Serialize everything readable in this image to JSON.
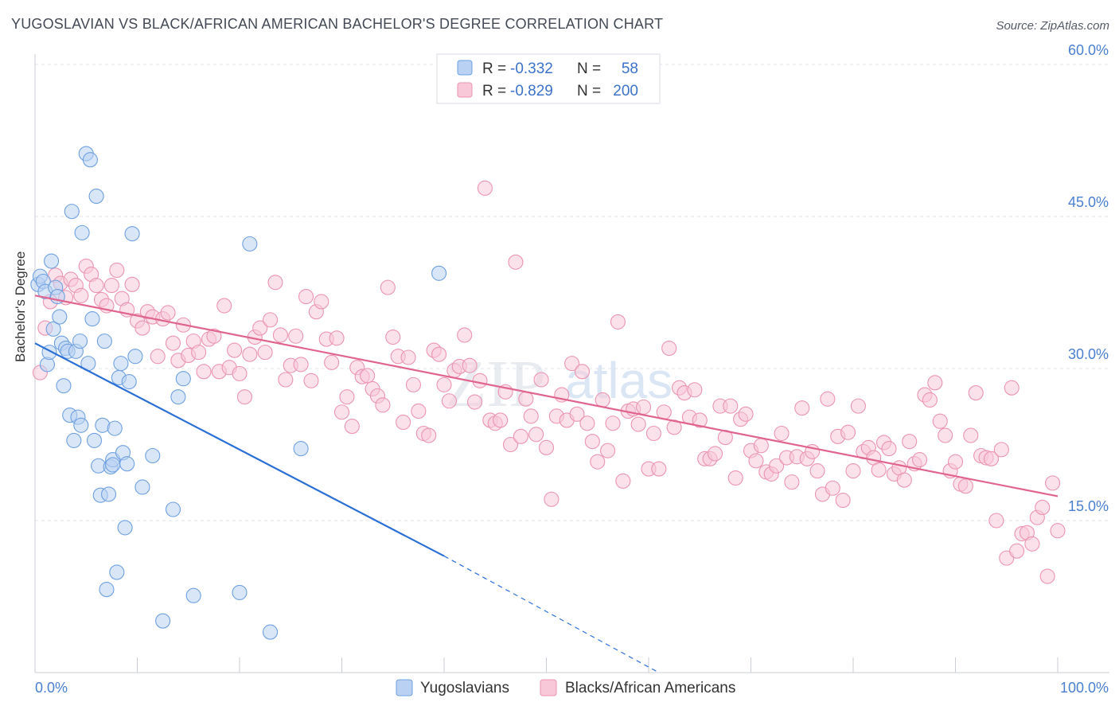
{
  "header": {
    "title": "YUGOSLAVIAN VS BLACK/AFRICAN AMERICAN BACHELOR'S DEGREE CORRELATION CHART",
    "source": "Source: ZipAtlas.com"
  },
  "watermark": {
    "part1": "ZIP",
    "part2": "atlas"
  },
  "colors": {
    "blue": "#6ea0e0",
    "blue_fill": "#b9d1f2",
    "blue_line": "#2a6fd6",
    "pink": "#eb94b2",
    "pink_fill": "#f8c8d8",
    "pink_line": "#e0648e",
    "axis_text": "#4a7fd0",
    "grid": "#dfe3ea"
  },
  "legend_top": {
    "rows": [
      {
        "r_label": "R =",
        "r_value": "-0.332",
        "n_label": "N =",
        "n_value": "58"
      },
      {
        "r_label": "R =",
        "r_value": "-0.829",
        "n_label": "N =",
        "n_value": "200"
      }
    ]
  },
  "chart_data": {
    "type": "scatter",
    "xlabel": "",
    "ylabel": "Bachelor's Degree",
    "xlim": [
      0,
      100
    ],
    "ylim": [
      0,
      60
    ],
    "x_tick_labels": [
      "0.0%",
      "100.0%"
    ],
    "y_ticks": [
      15,
      30,
      45,
      60
    ],
    "y_tick_labels": [
      "15.0%",
      "30.0%",
      "45.0%",
      "60.0%"
    ],
    "grid": true,
    "legend": [
      "Yugoslavians",
      "Blacks/African Americans"
    ],
    "series": [
      {
        "name": "Yugoslavians",
        "r": -0.332,
        "n": 58,
        "trend": {
          "x0": 0,
          "y0": 32.5,
          "x1": 40,
          "y1": 11.5,
          "x_dash_end": 61,
          "y_dash_end": 0
        },
        "points": [
          [
            0.3,
            38.3
          ],
          [
            0.5,
            39.1
          ],
          [
            0.8,
            38.6
          ],
          [
            1.0,
            37.6
          ],
          [
            1.2,
            30.4
          ],
          [
            1.4,
            31.6
          ],
          [
            1.6,
            40.6
          ],
          [
            1.8,
            33.9
          ],
          [
            2.0,
            38.0
          ],
          [
            2.2,
            37.1
          ],
          [
            2.4,
            35.1
          ],
          [
            2.6,
            32.5
          ],
          [
            2.8,
            28.3
          ],
          [
            3.0,
            32.0
          ],
          [
            3.2,
            31.7
          ],
          [
            3.4,
            25.4
          ],
          [
            3.6,
            45.5
          ],
          [
            3.8,
            22.9
          ],
          [
            4.0,
            31.7
          ],
          [
            4.2,
            25.2
          ],
          [
            4.4,
            32.7
          ],
          [
            4.6,
            43.4
          ],
          [
            4.5,
            24.4
          ],
          [
            5.0,
            51.2
          ],
          [
            5.2,
            30.5
          ],
          [
            5.4,
            50.6
          ],
          [
            5.6,
            34.9
          ],
          [
            5.8,
            22.9
          ],
          [
            6.0,
            47.0
          ],
          [
            6.2,
            20.4
          ],
          [
            6.4,
            17.5
          ],
          [
            6.6,
            24.4
          ],
          [
            6.8,
            32.7
          ],
          [
            7.0,
            8.2
          ],
          [
            7.2,
            17.6
          ],
          [
            7.4,
            20.3
          ],
          [
            7.6,
            21.0
          ],
          [
            7.8,
            24.1
          ],
          [
            7.6,
            20.5
          ],
          [
            8.0,
            9.9
          ],
          [
            8.2,
            29.1
          ],
          [
            8.4,
            30.5
          ],
          [
            8.6,
            21.7
          ],
          [
            8.8,
            14.3
          ],
          [
            9.0,
            20.6
          ],
          [
            9.2,
            28.7
          ],
          [
            9.5,
            43.3
          ],
          [
            9.8,
            31.2
          ],
          [
            10.5,
            18.3
          ],
          [
            11.5,
            21.4
          ],
          [
            12.5,
            5.1
          ],
          [
            13.5,
            16.1
          ],
          [
            14.0,
            27.2
          ],
          [
            14.5,
            29.0
          ],
          [
            15.5,
            7.6
          ],
          [
            20.0,
            7.9
          ],
          [
            21.0,
            42.3
          ],
          [
            23.0,
            4.0
          ],
          [
            26.0,
            22.1
          ],
          [
            39.5,
            39.4
          ]
        ]
      },
      {
        "name": "Blacks/African Americans",
        "r": -0.829,
        "n": 200,
        "trend": {
          "x0": 0,
          "y0": 37.2,
          "x1": 100,
          "y1": 17.4
        },
        "points": [
          [
            0.5,
            29.6
          ],
          [
            1.0,
            34.0
          ],
          [
            1.5,
            36.6
          ],
          [
            2.0,
            39.2
          ],
          [
            2.5,
            38.4
          ],
          [
            3.0,
            37.0
          ],
          [
            3.5,
            38.8
          ],
          [
            4.0,
            38.2
          ],
          [
            4.5,
            37.2
          ],
          [
            5.0,
            40.1
          ],
          [
            5.5,
            39.3
          ],
          [
            6.0,
            38.2
          ],
          [
            6.5,
            36.8
          ],
          [
            7.0,
            36.2
          ],
          [
            7.5,
            38.2
          ],
          [
            8.0,
            39.7
          ],
          [
            8.5,
            36.9
          ],
          [
            9.0,
            35.8
          ],
          [
            9.5,
            38.3
          ],
          [
            10.0,
            34.7
          ],
          [
            10.5,
            34.0
          ],
          [
            11.0,
            35.6
          ],
          [
            11.5,
            35.1
          ],
          [
            12.0,
            31.2
          ],
          [
            12.5,
            34.9
          ],
          [
            13.0,
            35.5
          ],
          [
            13.5,
            32.5
          ],
          [
            14.0,
            30.8
          ],
          [
            14.5,
            34.3
          ],
          [
            15.0,
            31.3
          ],
          [
            15.5,
            32.7
          ],
          [
            16.0,
            31.6
          ],
          [
            16.5,
            29.7
          ],
          [
            17.0,
            32.9
          ],
          [
            17.5,
            33.2
          ],
          [
            18.0,
            29.7
          ],
          [
            18.5,
            36.2
          ],
          [
            19.0,
            30.1
          ],
          [
            19.5,
            31.8
          ],
          [
            20.0,
            29.5
          ],
          [
            20.5,
            27.2
          ],
          [
            21.0,
            31.4
          ],
          [
            21.5,
            33.1
          ],
          [
            22.0,
            34.0
          ],
          [
            22.5,
            31.6
          ],
          [
            23.0,
            34.8
          ],
          [
            23.5,
            38.5
          ],
          [
            24.0,
            33.3
          ],
          [
            24.5,
            28.9
          ],
          [
            25.0,
            30.3
          ],
          [
            25.5,
            33.2
          ],
          [
            26.0,
            30.4
          ],
          [
            26.5,
            37.1
          ],
          [
            27.0,
            28.8
          ],
          [
            27.5,
            35.6
          ],
          [
            28.0,
            36.6
          ],
          [
            28.5,
            32.9
          ],
          [
            29.0,
            30.6
          ],
          [
            29.5,
            33.0
          ],
          [
            30.0,
            25.7
          ],
          [
            30.5,
            27.2
          ],
          [
            31.0,
            24.3
          ],
          [
            31.5,
            30.1
          ],
          [
            32.0,
            29.2
          ],
          [
            32.5,
            29.3
          ],
          [
            33.0,
            28.0
          ],
          [
            33.5,
            27.3
          ],
          [
            34.0,
            26.4
          ],
          [
            34.5,
            38.0
          ],
          [
            35.0,
            33.1
          ],
          [
            35.5,
            31.2
          ],
          [
            36.0,
            24.7
          ],
          [
            36.5,
            31.1
          ],
          [
            37.0,
            28.4
          ],
          [
            37.5,
            25.8
          ],
          [
            38.0,
            23.6
          ],
          [
            38.5,
            23.4
          ],
          [
            39.0,
            31.8
          ],
          [
            39.5,
            31.4
          ],
          [
            40.0,
            28.4
          ],
          [
            40.5,
            26.8
          ],
          [
            41.0,
            29.8
          ],
          [
            41.5,
            30.2
          ],
          [
            42.0,
            33.3
          ],
          [
            42.5,
            30.3
          ],
          [
            43.0,
            26.7
          ],
          [
            43.5,
            28.8
          ],
          [
            44.0,
            47.8
          ],
          [
            44.5,
            24.9
          ],
          [
            45.0,
            24.6
          ],
          [
            45.5,
            24.9
          ],
          [
            46.0,
            27.7
          ],
          [
            46.5,
            22.5
          ],
          [
            47.0,
            40.5
          ],
          [
            47.5,
            23.3
          ],
          [
            48.0,
            27.0
          ],
          [
            48.5,
            25.3
          ],
          [
            49.0,
            23.5
          ],
          [
            49.5,
            28.9
          ],
          [
            50.0,
            22.2
          ],
          [
            50.5,
            17.1
          ],
          [
            51.0,
            25.3
          ],
          [
            51.5,
            27.4
          ],
          [
            52.0,
            24.9
          ],
          [
            52.5,
            30.5
          ],
          [
            53.0,
            25.5
          ],
          [
            53.5,
            29.7
          ],
          [
            54.0,
            24.6
          ],
          [
            54.5,
            22.8
          ],
          [
            55.0,
            20.8
          ],
          [
            55.5,
            26.9
          ],
          [
            56.0,
            21.9
          ],
          [
            56.5,
            24.6
          ],
          [
            57.0,
            34.6
          ],
          [
            57.5,
            18.9
          ],
          [
            58.0,
            25.8
          ],
          [
            58.5,
            26.0
          ],
          [
            59.0,
            24.5
          ],
          [
            59.5,
            26.2
          ],
          [
            60.0,
            20.1
          ],
          [
            60.5,
            23.6
          ],
          [
            61.0,
            20.1
          ],
          [
            61.5,
            25.7
          ],
          [
            62.0,
            32.0
          ],
          [
            62.5,
            24.2
          ],
          [
            63.0,
            28.1
          ],
          [
            63.5,
            27.6
          ],
          [
            64.0,
            25.2
          ],
          [
            64.5,
            27.9
          ],
          [
            65.0,
            24.9
          ],
          [
            65.5,
            21.1
          ],
          [
            66.0,
            21.1
          ],
          [
            66.5,
            21.6
          ],
          [
            67.0,
            26.3
          ],
          [
            67.5,
            23.2
          ],
          [
            68.0,
            26.3
          ],
          [
            68.5,
            19.2
          ],
          [
            69.0,
            25.0
          ],
          [
            69.5,
            25.5
          ],
          [
            70.0,
            21.9
          ],
          [
            70.5,
            20.9
          ],
          [
            71.0,
            22.4
          ],
          [
            71.5,
            19.8
          ],
          [
            72.0,
            19.6
          ],
          [
            72.5,
            20.4
          ],
          [
            73.0,
            23.6
          ],
          [
            73.5,
            21.2
          ],
          [
            74.0,
            18.8
          ],
          [
            74.5,
            21.3
          ],
          [
            75.0,
            26.1
          ],
          [
            75.5,
            21.1
          ],
          [
            76.0,
            21.8
          ],
          [
            76.5,
            19.9
          ],
          [
            77.0,
            17.6
          ],
          [
            77.5,
            27.0
          ],
          [
            78.0,
            18.2
          ],
          [
            78.5,
            23.3
          ],
          [
            79.0,
            17.0
          ],
          [
            79.5,
            23.7
          ],
          [
            80.0,
            19.9
          ],
          [
            80.5,
            26.3
          ],
          [
            81.0,
            21.8
          ],
          [
            81.5,
            22.2
          ],
          [
            82.0,
            21.2
          ],
          [
            82.5,
            20.0
          ],
          [
            83.0,
            22.7
          ],
          [
            83.5,
            22.1
          ],
          [
            84.0,
            19.6
          ],
          [
            84.5,
            20.2
          ],
          [
            85.0,
            19.0
          ],
          [
            85.5,
            22.8
          ],
          [
            86.0,
            20.6
          ],
          [
            86.5,
            21.0
          ],
          [
            87.0,
            27.4
          ],
          [
            87.5,
            26.9
          ],
          [
            88.0,
            28.6
          ],
          [
            88.5,
            24.8
          ],
          [
            89.0,
            23.4
          ],
          [
            89.5,
            19.9
          ],
          [
            90.0,
            20.8
          ],
          [
            90.5,
            18.6
          ],
          [
            91.0,
            18.4
          ],
          [
            91.5,
            23.4
          ],
          [
            92.0,
            27.6
          ],
          [
            92.5,
            21.4
          ],
          [
            93.0,
            21.2
          ],
          [
            93.5,
            21.1
          ],
          [
            94.0,
            15.0
          ],
          [
            94.5,
            22.0
          ],
          [
            95.0,
            11.3
          ],
          [
            95.5,
            28.1
          ],
          [
            96.0,
            12.0
          ],
          [
            96.5,
            13.7
          ],
          [
            97.0,
            13.8
          ],
          [
            97.5,
            12.7
          ],
          [
            98.0,
            15.3
          ],
          [
            98.5,
            16.3
          ],
          [
            99.0,
            9.5
          ],
          [
            99.5,
            18.7
          ],
          [
            100.0,
            14.0
          ]
        ]
      }
    ]
  }
}
